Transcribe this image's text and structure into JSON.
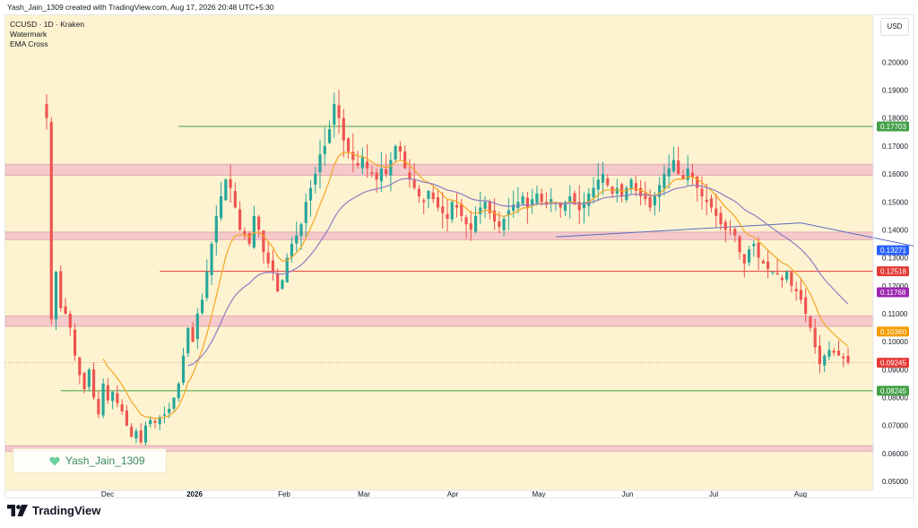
{
  "caption": "Yash_Jain_1309 created with TradingView.com, Aug 17, 2026 20:48 UTC+5:30",
  "legend": {
    "symbol": "CCUSD · 1D · Kraken",
    "line2": "Watermark",
    "line3": "EMA Cross"
  },
  "currency": "USD",
  "watermark_text": "Yash_Jain_1309",
  "brand": "TradingView",
  "colors": {
    "background": "#fdf3d0",
    "up": "#26a69a",
    "down": "#ef5350",
    "ema_fast": "#f5a623",
    "ema_slow": "#8e7cc3",
    "zone": "#f2bcc8",
    "support_green": "#43a047",
    "resistance_red": "#e53935"
  },
  "chart_data": {
    "type": "candlestick",
    "title": "CCUSD · 1D · Kraken",
    "x_labels": [
      "Dec",
      "2026",
      "Feb",
      "Mar",
      "Apr",
      "May",
      "Jun",
      "Jul",
      "Aug"
    ],
    "y_ticks": [
      "0.20000",
      "0.19000",
      "0.18000",
      "0.17000",
      "0.16000",
      "0.15000",
      "0.14000",
      "0.13000",
      "0.12000",
      "0.11000",
      "0.10000",
      "0.09000",
      "0.08000",
      "0.07000",
      "0.06000",
      "0.05000"
    ],
    "ylim": [
      0.0468,
      0.2168
    ],
    "price_tags": [
      {
        "label": "0.17703",
        "value": 0.17703,
        "color": "#43a047"
      },
      {
        "label": "0.13271",
        "value": 0.13271,
        "color": "#2962ff"
      },
      {
        "label": "0.12518",
        "value": 0.12518,
        "color": "#e53935"
      },
      {
        "label": "0.11768",
        "value": 0.11768,
        "color": "#9c27b0"
      },
      {
        "label": "0.10360",
        "value": 0.1036,
        "color": "#f59b00"
      },
      {
        "label": "0.09245",
        "value": 0.09245,
        "color": "#e53935"
      },
      {
        "label": "0.08245",
        "value": 0.08245,
        "color": "#43a047"
      }
    ],
    "zones": [
      [
        0.1595,
        0.1635
      ],
      [
        0.1365,
        0.1392
      ],
      [
        0.1055,
        0.1092
      ],
      [
        0.0608,
        0.0628
      ]
    ],
    "horizontal_lines": [
      {
        "value": 0.17703,
        "color": "#43a047",
        "from_index": 28
      },
      {
        "value": 0.12518,
        "color": "#e53935",
        "from_index": 24
      },
      {
        "value": 0.08245,
        "color": "#43a047",
        "from_index": 3
      }
    ],
    "anchored_line": {
      "from_index": 108,
      "from_value": 0.1375,
      "to_index": 160,
      "to_value": 0.1425
    },
    "anchored_line_2": {
      "from_index": 160,
      "from_value": 0.1425,
      "to_index": 188,
      "to_value": 0.1328
    },
    "closes": [
      0.18,
      0.108,
      0.125,
      0.112,
      0.11,
      0.105,
      0.095,
      0.088,
      0.083,
      0.09,
      0.08,
      0.074,
      0.085,
      0.079,
      0.082,
      0.078,
      0.075,
      0.07,
      0.066,
      0.068,
      0.064,
      0.07,
      0.072,
      0.071,
      0.073,
      0.074,
      0.076,
      0.08,
      0.085,
      0.095,
      0.105,
      0.1,
      0.11,
      0.115,
      0.125,
      0.135,
      0.145,
      0.152,
      0.158,
      0.155,
      0.148,
      0.14,
      0.138,
      0.135,
      0.145,
      0.14,
      0.132,
      0.128,
      0.125,
      0.118,
      0.122,
      0.13,
      0.135,
      0.138,
      0.142,
      0.15,
      0.155,
      0.16,
      0.167,
      0.17,
      0.176,
      0.185,
      0.18,
      0.172,
      0.168,
      0.165,
      0.163,
      0.166,
      0.162,
      0.16,
      0.158,
      0.162,
      0.16,
      0.165,
      0.17,
      0.168,
      0.162,
      0.158,
      0.155,
      0.152,
      0.15,
      0.154,
      0.151,
      0.148,
      0.146,
      0.144,
      0.15,
      0.148,
      0.145,
      0.142,
      0.14,
      0.145,
      0.148,
      0.15,
      0.146,
      0.143,
      0.141,
      0.144,
      0.147,
      0.149,
      0.15,
      0.152,
      0.148,
      0.151,
      0.153,
      0.15,
      0.149,
      0.151,
      0.15,
      0.148,
      0.15,
      0.152,
      0.149,
      0.147,
      0.15,
      0.153,
      0.155,
      0.158,
      0.16,
      0.156,
      0.153,
      0.155,
      0.152,
      0.155,
      0.158,
      0.154,
      0.152,
      0.151,
      0.148,
      0.152,
      0.156,
      0.16,
      0.162,
      0.165,
      0.16,
      0.158,
      0.162,
      0.159,
      0.155,
      0.152,
      0.15,
      0.148,
      0.145,
      0.142,
      0.14,
      0.14,
      0.138,
      0.132,
      0.128,
      0.133,
      0.135,
      0.13,
      0.128,
      0.126,
      0.125,
      0.124,
      0.122,
      0.125,
      0.12,
      0.118,
      0.115,
      0.11,
      0.105,
      0.098,
      0.092,
      0.095,
      0.097,
      0.096,
      0.095,
      0.094,
      0.0925
    ],
    "ema_fast_note": "orange EMA",
    "ema_slow_note": "purple EMA"
  }
}
